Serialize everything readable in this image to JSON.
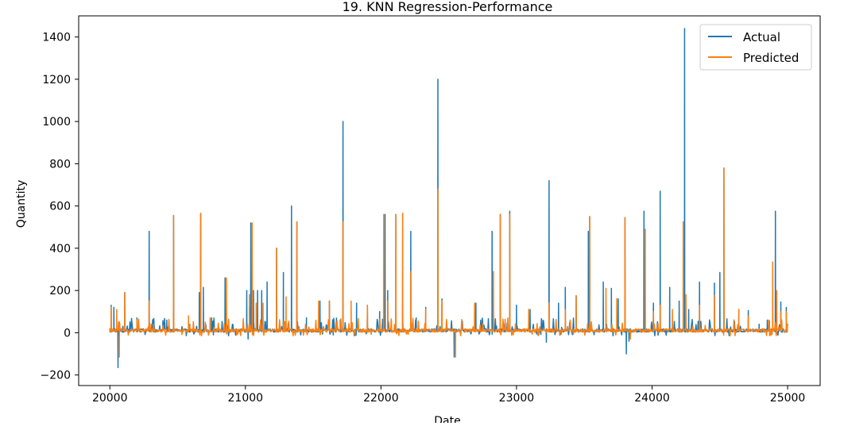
{
  "chart_data": {
    "type": "line",
    "title": "19. KNN Regression-Performance",
    "xlabel": "Date",
    "ylabel": "Quantity",
    "xlim": [
      19770,
      25240
    ],
    "ylim": [
      -250,
      1500
    ],
    "xticks": [
      20000,
      21000,
      22000,
      23000,
      24000,
      25000
    ],
    "yticks": [
      -200,
      0,
      200,
      400,
      600,
      800,
      1000,
      1200,
      1400
    ],
    "grid": false,
    "legend_position": "top-right",
    "series": [
      {
        "name": "Actual",
        "color": "#1f77b4",
        "spikes": [
          [
            20000,
            10
          ],
          [
            20010,
            130
          ],
          [
            20030,
            120
          ],
          [
            20060,
            -165
          ],
          [
            20070,
            50
          ],
          [
            20110,
            190
          ],
          [
            20200,
            70
          ],
          [
            20290,
            480
          ],
          [
            20310,
            40
          ],
          [
            20420,
            60
          ],
          [
            20470,
            555
          ],
          [
            20590,
            40
          ],
          [
            20660,
            190
          ],
          [
            20670,
            565
          ],
          [
            20690,
            215
          ],
          [
            20750,
            70
          ],
          [
            20850,
            260
          ],
          [
            21010,
            200
          ],
          [
            21020,
            -30
          ],
          [
            21030,
            120
          ],
          [
            21040,
            520
          ],
          [
            21060,
            200
          ],
          [
            21090,
            200
          ],
          [
            21120,
            200
          ],
          [
            21160,
            240
          ],
          [
            21230,
            400
          ],
          [
            21280,
            285
          ],
          [
            21340,
            600
          ],
          [
            21380,
            525
          ],
          [
            21450,
            70
          ],
          [
            21550,
            150
          ],
          [
            21620,
            150
          ],
          [
            21700,
            60
          ],
          [
            21720,
            1000
          ],
          [
            21820,
            140
          ],
          [
            21900,
            130
          ],
          [
            21990,
            100
          ],
          [
            22030,
            560
          ],
          [
            22050,
            200
          ],
          [
            22110,
            560
          ],
          [
            22160,
            565
          ],
          [
            22220,
            480
          ],
          [
            22260,
            70
          ],
          [
            22330,
            120
          ],
          [
            22420,
            1200
          ],
          [
            22450,
            160
          ],
          [
            22540,
            -115
          ],
          [
            22700,
            140
          ],
          [
            22820,
            480
          ],
          [
            22880,
            560
          ],
          [
            22950,
            575
          ],
          [
            23000,
            130
          ],
          [
            23100,
            110
          ],
          [
            23220,
            -45
          ],
          [
            23240,
            720
          ],
          [
            23310,
            140
          ],
          [
            23360,
            215
          ],
          [
            23440,
            175
          ],
          [
            23530,
            480
          ],
          [
            23540,
            550
          ],
          [
            23640,
            240
          ],
          [
            23700,
            210
          ],
          [
            23750,
            160
          ],
          [
            23800,
            545
          ],
          [
            23810,
            -100
          ],
          [
            23830,
            -40
          ],
          [
            23940,
            575
          ],
          [
            24010,
            140
          ],
          [
            24060,
            670
          ],
          [
            24130,
            215
          ],
          [
            24200,
            150
          ],
          [
            24240,
            1440
          ],
          [
            24270,
            110
          ],
          [
            24350,
            240
          ],
          [
            24460,
            235
          ],
          [
            24500,
            285
          ],
          [
            24530,
            780
          ],
          [
            24640,
            110
          ],
          [
            24710,
            105
          ],
          [
            24790,
            40
          ],
          [
            24850,
            60
          ],
          [
            24910,
            575
          ],
          [
            24950,
            145
          ],
          [
            24990,
            120
          ]
        ]
      },
      {
        "name": "Predicted",
        "color": "#ff7f0e",
        "spikes": [
          [
            20000,
            20
          ],
          [
            20010,
            120
          ],
          [
            20050,
            110
          ],
          [
            20070,
            -115
          ],
          [
            20110,
            190
          ],
          [
            20200,
            60
          ],
          [
            20290,
            150
          ],
          [
            20320,
            40
          ],
          [
            20470,
            555
          ],
          [
            20580,
            80
          ],
          [
            20670,
            565
          ],
          [
            20740,
            70
          ],
          [
            20860,
            260
          ],
          [
            21030,
            180
          ],
          [
            21050,
            520
          ],
          [
            21080,
            140
          ],
          [
            21130,
            140
          ],
          [
            21230,
            400
          ],
          [
            21300,
            170
          ],
          [
            21380,
            525
          ],
          [
            21540,
            150
          ],
          [
            21620,
            150
          ],
          [
            21720,
            525
          ],
          [
            21780,
            150
          ],
          [
            21900,
            130
          ],
          [
            22020,
            560
          ],
          [
            22050,
            150
          ],
          [
            22110,
            560
          ],
          [
            22160,
            565
          ],
          [
            22220,
            290
          ],
          [
            22330,
            110
          ],
          [
            22420,
            680
          ],
          [
            22450,
            150
          ],
          [
            22550,
            -115
          ],
          [
            22690,
            140
          ],
          [
            22830,
            290
          ],
          [
            22880,
            560
          ],
          [
            22950,
            560
          ],
          [
            23090,
            110
          ],
          [
            23240,
            140
          ],
          [
            23360,
            110
          ],
          [
            23440,
            175
          ],
          [
            23540,
            550
          ],
          [
            23660,
            210
          ],
          [
            23740,
            160
          ],
          [
            23800,
            545
          ],
          [
            23840,
            -30
          ],
          [
            23950,
            490
          ],
          [
            24010,
            100
          ],
          [
            24060,
            130
          ],
          [
            24150,
            110
          ],
          [
            24230,
            525
          ],
          [
            24250,
            180
          ],
          [
            24350,
            130
          ],
          [
            24460,
            175
          ],
          [
            24530,
            780
          ],
          [
            24640,
            110
          ],
          [
            24710,
            80
          ],
          [
            24860,
            60
          ],
          [
            24890,
            335
          ],
          [
            24920,
            200
          ],
          [
            24950,
            100
          ],
          [
            24990,
            100
          ]
        ]
      }
    ]
  }
}
